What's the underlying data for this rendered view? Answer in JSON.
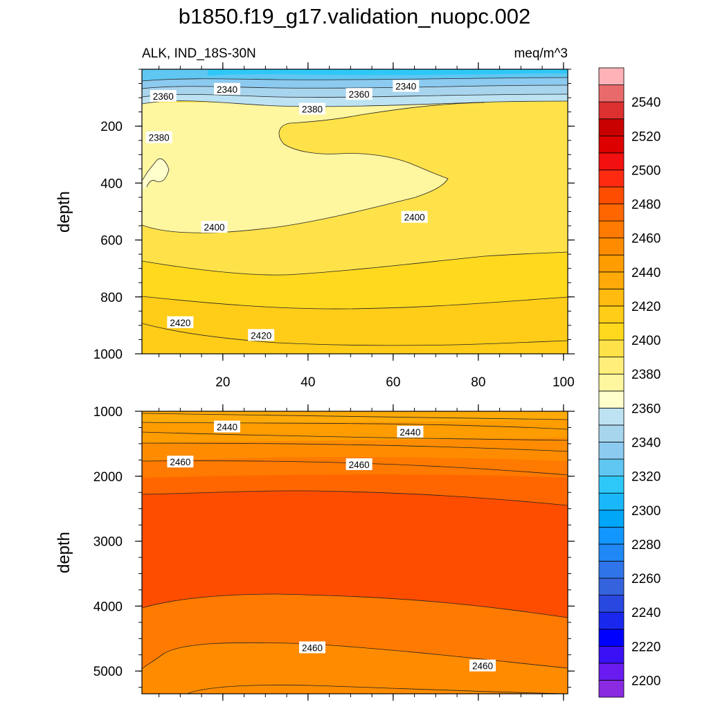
{
  "chart_data": {
    "type": "contour",
    "title": "b1850.f19_g17.validation_nuopc.002",
    "variable_label": "ALK, IND_18S-30N",
    "units_label": "meq/m^3",
    "x_axis": {
      "range": [
        1,
        101
      ],
      "ticks": [
        20,
        40,
        60,
        80,
        100
      ]
    },
    "panels": [
      {
        "name": "upper",
        "ylabel": "depth",
        "ylim": [
          0,
          1000
        ],
        "y_ticks": [
          200,
          400,
          600,
          800,
          1000
        ],
        "contour_labels": [
          {
            "text": "2340",
            "x": 21,
            "y": 70
          },
          {
            "text": "2340",
            "x": 63,
            "y": 60
          },
          {
            "text": "2360",
            "x": 6,
            "y": 95
          },
          {
            "text": "2360",
            "x": 52,
            "y": 88
          },
          {
            "text": "2380",
            "x": 41,
            "y": 140
          },
          {
            "text": "2380",
            "x": 5,
            "y": 240
          },
          {
            "text": "2400",
            "x": 18,
            "y": 555
          },
          {
            "text": "2400",
            "x": 65,
            "y": 520
          },
          {
            "text": "2420",
            "x": 10,
            "y": 890
          },
          {
            "text": "2420",
            "x": 29,
            "y": 935
          }
        ]
      },
      {
        "name": "lower",
        "ylabel": "depth",
        "ylim": [
          1000,
          5350
        ],
        "y_ticks": [
          1000,
          2000,
          3000,
          4000,
          5000
        ],
        "contour_labels": [
          {
            "text": "2440",
            "x": 21,
            "y": 1240
          },
          {
            "text": "2440",
            "x": 64,
            "y": 1320
          },
          {
            "text": "2460",
            "x": 10,
            "y": 1780
          },
          {
            "text": "2460",
            "x": 52,
            "y": 1820
          },
          {
            "text": "2460",
            "x": 41,
            "y": 4640
          },
          {
            "text": "2460",
            "x": 81,
            "y": 4920
          }
        ]
      }
    ],
    "colorbar": {
      "levels": [
        2200,
        2210,
        2220,
        2230,
        2240,
        2250,
        2260,
        2270,
        2280,
        2290,
        2300,
        2310,
        2320,
        2330,
        2340,
        2350,
        2360,
        2370,
        2380,
        2390,
        2400,
        2410,
        2420,
        2430,
        2440,
        2450,
        2460,
        2470,
        2480,
        2490,
        2500,
        2510,
        2520,
        2530,
        2540,
        2550
      ],
      "tick_labels": [
        "2200",
        "2220",
        "2240",
        "2260",
        "2280",
        "2300",
        "2320",
        "2340",
        "2360",
        "2380",
        "2400",
        "2420",
        "2440",
        "2460",
        "2480",
        "2500",
        "2520",
        "2540"
      ],
      "colors": [
        "#8a2be2",
        "#6a1cf0",
        "#3a10f5",
        "#0000ff",
        "#1a28ee",
        "#2848e0",
        "#3563dd",
        "#2f74e8",
        "#1f88f5",
        "#1296ff",
        "#00a6f8",
        "#1ab8fb",
        "#2ec8f8",
        "#60c6f2",
        "#8ccaef",
        "#a8d5ee",
        "#bde3f3",
        "#ffffcc",
        "#fff6a0",
        "#ffef7a",
        "#ffe24a",
        "#ffd91e",
        "#ffcc18",
        "#ffbb10",
        "#ffaa08",
        "#ff9c00",
        "#ff8c00",
        "#ff7a00",
        "#ff6600",
        "#ff4d00",
        "#ff2a10",
        "#f21010",
        "#dd0000",
        "#c80000",
        "#dd3030",
        "#e86a6a",
        "#ffb3b8"
      ]
    }
  }
}
